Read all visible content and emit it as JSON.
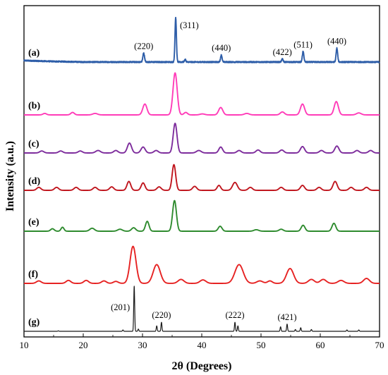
{
  "chart_data": {
    "type": "line",
    "title": "",
    "xlabel": "2θ (Degrees)",
    "ylabel": "Intensity (a.u.)",
    "xlim": [
      10,
      70
    ],
    "xticks": [
      10,
      20,
      30,
      40,
      50,
      60,
      70
    ],
    "grid": false,
    "legend": "none",
    "series": [
      {
        "name": "(a)",
        "color": "#2d5da8",
        "noise": 0.012,
        "baseline": [
          [
            10,
            0.03
          ],
          [
            14,
            0.015
          ],
          [
            20,
            0.0
          ],
          [
            70,
            0.0
          ]
        ],
        "peaks": [
          [
            30.2,
            0.18,
            0.14
          ],
          [
            35.6,
            0.9,
            0.12
          ],
          [
            37.2,
            0.05,
            0.12
          ],
          [
            43.3,
            0.14,
            0.13
          ],
          [
            53.6,
            0.06,
            0.13
          ],
          [
            57.1,
            0.21,
            0.13
          ],
          [
            62.8,
            0.28,
            0.13
          ]
        ]
      },
      {
        "name": "(b)",
        "color": "#ff3bb8",
        "noise": 0,
        "baseline": [
          [
            10,
            0
          ],
          [
            70,
            0
          ]
        ],
        "peaks": [
          [
            13.5,
            0.03,
            0.3
          ],
          [
            18.2,
            0.05,
            0.3
          ],
          [
            22,
            0.03,
            0.4
          ],
          [
            30.4,
            0.22,
            0.35
          ],
          [
            35.5,
            0.85,
            0.35
          ],
          [
            37.3,
            0.05,
            0.3
          ],
          [
            40.1,
            0.02,
            0.4
          ],
          [
            43.2,
            0.15,
            0.35
          ],
          [
            47.6,
            0.03,
            0.4
          ],
          [
            53.6,
            0.06,
            0.35
          ],
          [
            57,
            0.22,
            0.35
          ],
          [
            62.7,
            0.27,
            0.35
          ],
          [
            66.5,
            0.04,
            0.4
          ]
        ]
      },
      {
        "name": "(c)",
        "color": "#7d2c9c",
        "noise": 0,
        "baseline": [
          [
            10,
            0
          ],
          [
            70,
            0
          ]
        ],
        "peaks": [
          [
            13,
            0.04,
            0.35
          ],
          [
            16.2,
            0.04,
            0.35
          ],
          [
            19.5,
            0.04,
            0.35
          ],
          [
            22.5,
            0.05,
            0.4
          ],
          [
            25.5,
            0.05,
            0.35
          ],
          [
            27.8,
            0.2,
            0.35
          ],
          [
            30.1,
            0.12,
            0.35
          ],
          [
            32.3,
            0.05,
            0.35
          ],
          [
            35.5,
            0.6,
            0.32
          ],
          [
            39.5,
            0.05,
            0.4
          ],
          [
            43.2,
            0.12,
            0.32
          ],
          [
            46.3,
            0.05,
            0.35
          ],
          [
            49.5,
            0.06,
            0.35
          ],
          [
            53.5,
            0.06,
            0.35
          ],
          [
            57,
            0.13,
            0.35
          ],
          [
            60.2,
            0.05,
            0.35
          ],
          [
            62.8,
            0.14,
            0.35
          ],
          [
            66.2,
            0.05,
            0.35
          ],
          [
            68.5,
            0.05,
            0.35
          ]
        ]
      },
      {
        "name": "(d)",
        "color": "#c0161e",
        "noise": 0,
        "baseline": [
          [
            10,
            0
          ],
          [
            70,
            0
          ]
        ],
        "peaks": [
          [
            12.5,
            0.06,
            0.35
          ],
          [
            15.5,
            0.06,
            0.35
          ],
          [
            18.8,
            0.06,
            0.35
          ],
          [
            22,
            0.06,
            0.35
          ],
          [
            24.8,
            0.07,
            0.35
          ],
          [
            27.7,
            0.18,
            0.32
          ],
          [
            30.1,
            0.15,
            0.32
          ],
          [
            32.8,
            0.07,
            0.35
          ],
          [
            35.3,
            0.52,
            0.3
          ],
          [
            38.8,
            0.08,
            0.35
          ],
          [
            42.9,
            0.1,
            0.3
          ],
          [
            45.6,
            0.16,
            0.4
          ],
          [
            48.2,
            0.06,
            0.35
          ],
          [
            53.4,
            0.06,
            0.35
          ],
          [
            57,
            0.1,
            0.35
          ],
          [
            59.8,
            0.06,
            0.35
          ],
          [
            62.5,
            0.18,
            0.35
          ],
          [
            65.2,
            0.06,
            0.35
          ],
          [
            67.8,
            0.06,
            0.35
          ]
        ]
      },
      {
        "name": "(e)",
        "color": "#2e8b2e",
        "noise": 0,
        "baseline": [
          [
            10,
            0
          ],
          [
            70,
            0
          ]
        ],
        "peaks": [
          [
            14.8,
            0.05,
            0.3
          ],
          [
            16.5,
            0.08,
            0.25
          ],
          [
            21.5,
            0.06,
            0.4
          ],
          [
            26.2,
            0.04,
            0.4
          ],
          [
            28.5,
            0.07,
            0.35
          ],
          [
            30.8,
            0.2,
            0.3
          ],
          [
            35.4,
            0.62,
            0.32
          ],
          [
            43.1,
            0.1,
            0.32
          ],
          [
            49.2,
            0.03,
            0.4
          ],
          [
            53.4,
            0.04,
            0.35
          ],
          [
            57.1,
            0.12,
            0.32
          ],
          [
            62.3,
            0.16,
            0.32
          ]
        ]
      },
      {
        "name": "(f)",
        "color": "#e62222",
        "noise": 0,
        "baseline": [
          [
            10,
            0
          ],
          [
            70,
            0
          ]
        ],
        "peaks": [
          [
            12.5,
            0.05,
            0.4
          ],
          [
            17.5,
            0.06,
            0.4
          ],
          [
            20.5,
            0.06,
            0.4
          ],
          [
            23.5,
            0.05,
            0.4
          ],
          [
            25.5,
            0.04,
            0.4
          ],
          [
            28.4,
            0.75,
            0.5
          ],
          [
            32.4,
            0.38,
            0.6
          ],
          [
            36.5,
            0.08,
            0.5
          ],
          [
            40.2,
            0.07,
            0.5
          ],
          [
            46.3,
            0.38,
            0.7
          ],
          [
            49.8,
            0.05,
            0.5
          ],
          [
            51.5,
            0.05,
            0.4
          ],
          [
            54.9,
            0.3,
            0.6
          ],
          [
            58.5,
            0.08,
            0.5
          ],
          [
            60.5,
            0.08,
            0.5
          ],
          [
            63.5,
            0.06,
            0.5
          ],
          [
            67.8,
            0.1,
            0.5
          ]
        ]
      },
      {
        "name": "(g)",
        "color": "#1a1a1a",
        "noise": 0,
        "baseline": [
          [
            10,
            0
          ],
          [
            70,
            0
          ]
        ],
        "peaks": [
          [
            15.8,
            0.01,
            0.08
          ],
          [
            26.7,
            0.03,
            0.08
          ],
          [
            28.6,
            1.0,
            0.08
          ],
          [
            29.3,
            0.05,
            0.08
          ],
          [
            32.4,
            0.12,
            0.08
          ],
          [
            33.2,
            0.2,
            0.08
          ],
          [
            45.6,
            0.2,
            0.08
          ],
          [
            46.1,
            0.12,
            0.08
          ],
          [
            53.3,
            0.1,
            0.08
          ],
          [
            54.4,
            0.16,
            0.08
          ],
          [
            55.8,
            0.04,
            0.08
          ],
          [
            56.7,
            0.08,
            0.08
          ],
          [
            58.5,
            0.04,
            0.08
          ],
          [
            64.5,
            0.03,
            0.08
          ],
          [
            66.5,
            0.03,
            0.08
          ]
        ]
      }
    ],
    "annotations": [
      {
        "text": "(220)",
        "x": 30.2,
        "series": "(a)"
      },
      {
        "text": "(311)",
        "x": 35.6,
        "series": "(a)"
      },
      {
        "text": "(440)",
        "x": 43.3,
        "series": "(a)"
      },
      {
        "text": "(422)",
        "x": 53.6,
        "series": "(a)"
      },
      {
        "text": "(511)",
        "x": 57.1,
        "series": "(a)"
      },
      {
        "text": "(440)",
        "x": 62.8,
        "series": "(a)"
      },
      {
        "text": "(201)",
        "x": 28.6,
        "series": "(g)"
      },
      {
        "text": "(220)",
        "x": 33.2,
        "series": "(g)"
      },
      {
        "text": "(222)",
        "x": 45.6,
        "series": "(g)"
      },
      {
        "text": "(421)",
        "x": 54.4,
        "series": "(g)"
      }
    ]
  }
}
